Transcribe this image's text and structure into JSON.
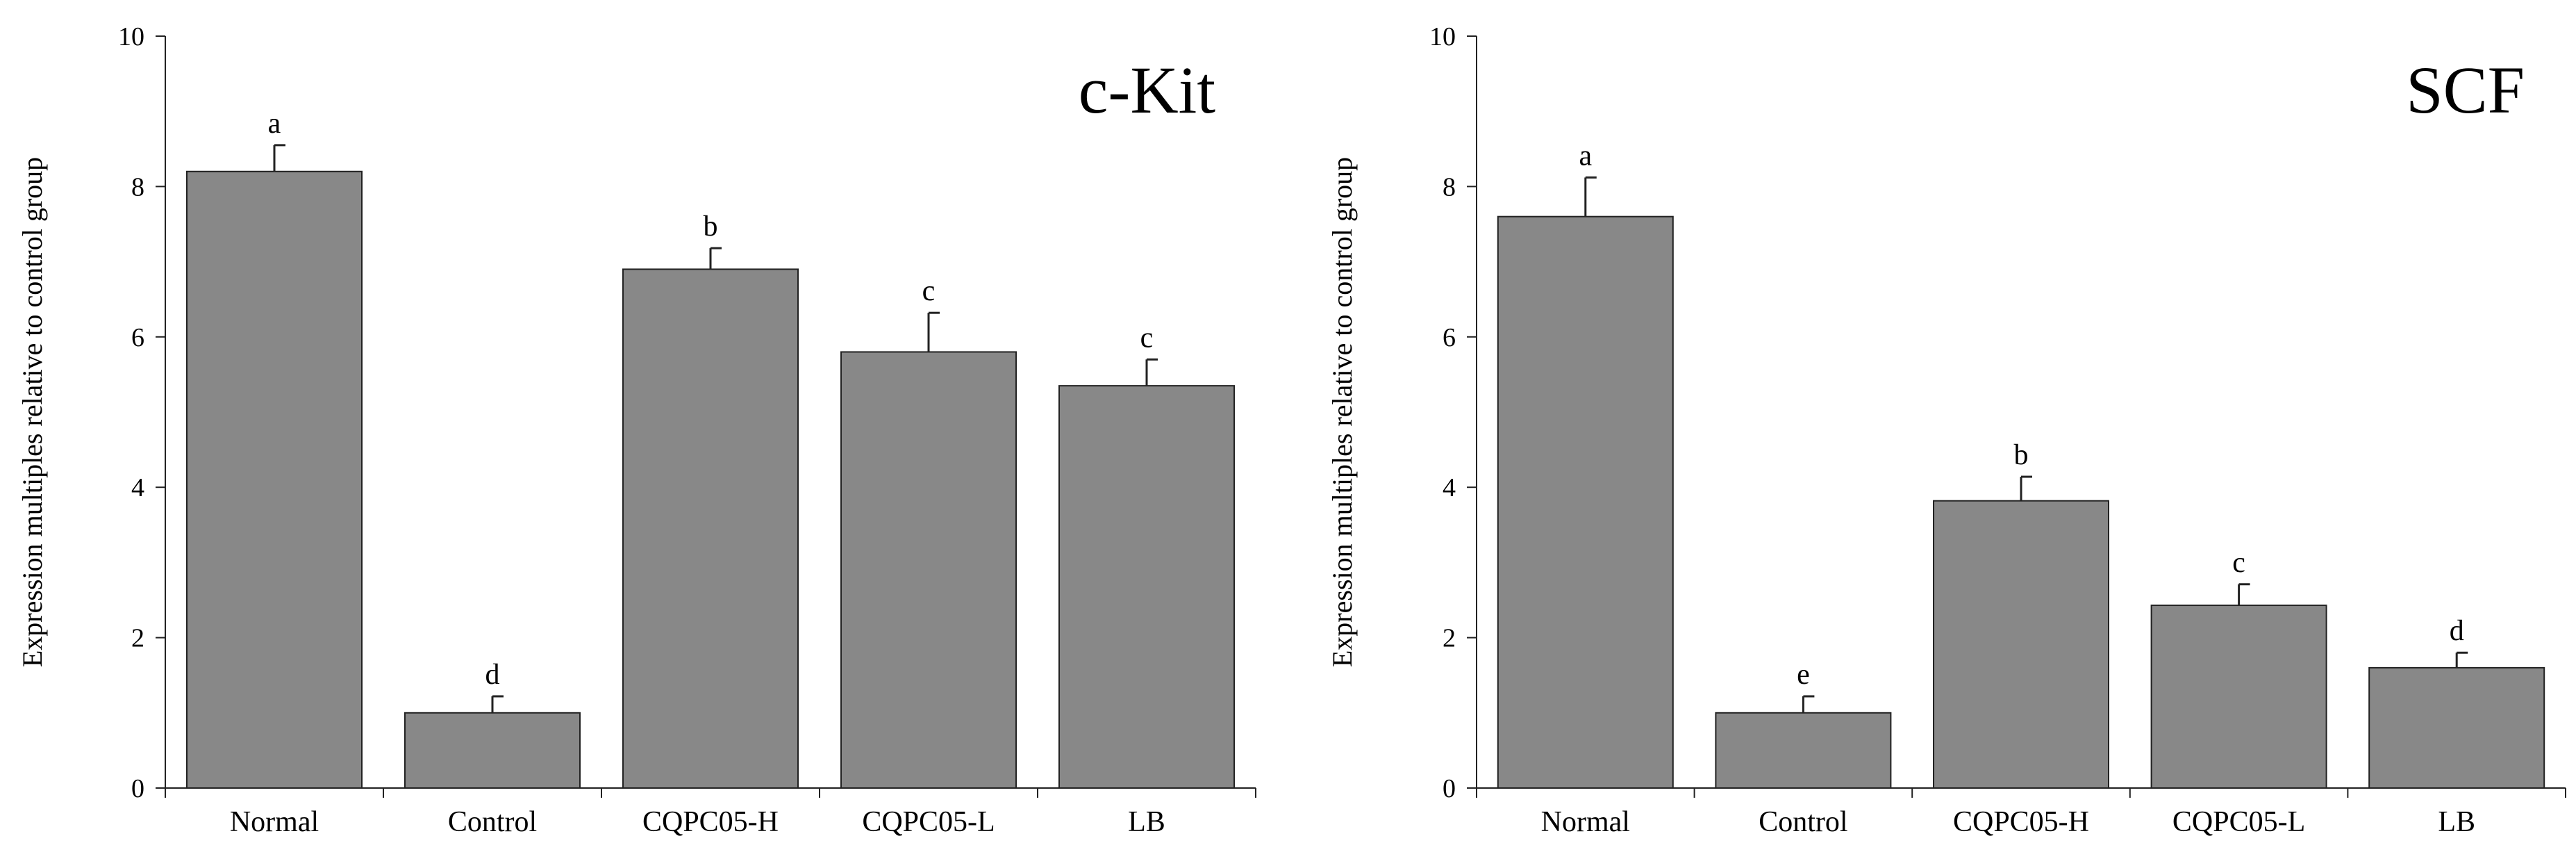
{
  "chart_data": [
    {
      "type": "bar",
      "title": "c-Kit",
      "xlabel": "",
      "ylabel": "Expression multiples relative to control group",
      "ylim": [
        0,
        10
      ],
      "yticks": [
        0,
        2,
        4,
        6,
        8,
        10
      ],
      "categories": [
        "Normal",
        "Control",
        "CQPC05-H",
        "CQPC05-L",
        "LB"
      ],
      "values": [
        8.2,
        1.0,
        6.9,
        5.8,
        5.35
      ],
      "errors": [
        0.35,
        0.22,
        0.28,
        0.52,
        0.35
      ],
      "significance": [
        "a",
        "d",
        "b",
        "c",
        "c"
      ],
      "bar_color": "#888888",
      "grid": false
    },
    {
      "type": "bar",
      "title": "SCF",
      "xlabel": "",
      "ylabel": "Expression multiples relative to control group",
      "ylim": [
        0,
        10
      ],
      "yticks": [
        0,
        2,
        4,
        6,
        8,
        10
      ],
      "categories": [
        "Normal",
        "Control",
        "CQPC05-H",
        "CQPC05-L",
        "LB"
      ],
      "values": [
        7.6,
        1.0,
        3.82,
        2.43,
        1.6
      ],
      "errors": [
        0.52,
        0.22,
        0.32,
        0.28,
        0.2
      ],
      "significance": [
        "a",
        "e",
        "b",
        "c",
        "d"
      ],
      "bar_color": "#888888",
      "grid": false
    }
  ]
}
